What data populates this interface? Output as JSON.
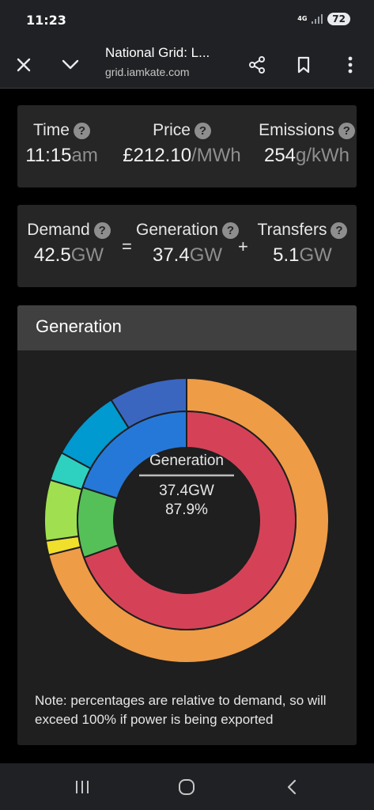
{
  "status": {
    "time": "11:23",
    "network": "4G",
    "battery": "72"
  },
  "browser": {
    "title": "National Grid: L...",
    "url": "grid.iamkate.com"
  },
  "stats": {
    "time": {
      "label": "Time",
      "value": "11:15",
      "unit": "am"
    },
    "price": {
      "label": "Price",
      "value": "£212.10",
      "unit": "/MWh"
    },
    "emissions": {
      "label": "Emissions",
      "value": "254",
      "unit": "g/kWh"
    },
    "help_glyph": "?"
  },
  "balance": {
    "demand": {
      "label": "Demand",
      "value": "42.5",
      "unit": "GW"
    },
    "equals": "=",
    "generation": {
      "label": "Generation",
      "value": "37.4",
      "unit": "GW"
    },
    "plus": "+",
    "transfers": {
      "label": "Transfers",
      "value": "5.1",
      "unit": "GW"
    }
  },
  "generation_panel": {
    "title": "Generation",
    "center_label": "Generation",
    "center_value": "37.4GW",
    "center_percent": "87.9%",
    "note": "Note: percentages are relative to demand, so will exceed 100% if power is being exported"
  },
  "chart_data": {
    "type": "pie",
    "title": "Generation",
    "rings": [
      {
        "ring": "outer",
        "segments": [
          {
            "color": "#ef9c47",
            "value": 71.1
          },
          {
            "color": "#f0e02c",
            "value": 1.6
          },
          {
            "color": "#a0e050",
            "value": 6.9
          },
          {
            "color": "#2ed0c0",
            "value": 3.3
          },
          {
            "color": "#0099d0",
            "value": 8.2
          },
          {
            "color": "#3a66c0",
            "value": 8.9
          }
        ]
      },
      {
        "ring": "inner",
        "segments": [
          {
            "color": "#d54258",
            "value": 69.5
          },
          {
            "color": "#56c058",
            "value": 10.4
          },
          {
            "color": "#2678d8",
            "value": 20.1
          }
        ]
      }
    ]
  }
}
